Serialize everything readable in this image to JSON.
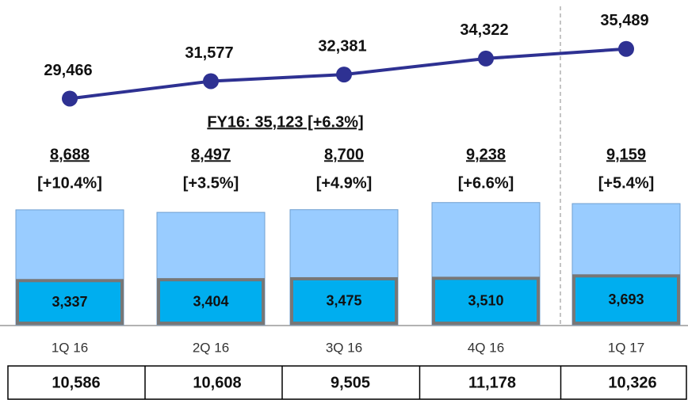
{
  "chart_data": {
    "type": "bar_line",
    "categories": [
      "1Q 16",
      "2Q 16",
      "3Q 16",
      "4Q 16",
      "1Q 17"
    ],
    "line": {
      "color": "#2e3192",
      "values": [
        29466,
        31577,
        32381,
        34322,
        35489
      ],
      "value_labels": [
        "29,466",
        "31,577",
        "32,381",
        "34,322",
        "35,489"
      ],
      "y2lim": [
        25000,
        37000
      ]
    },
    "totals": {
      "color": "#99ccff",
      "values": [
        8688,
        8497,
        8700,
        9238,
        9159
      ],
      "value_labels": [
        "8,688",
        "8,497",
        "8,700",
        "9,238",
        "9,159"
      ],
      "growth_labels": [
        "[+10.4%]",
        "[+3.5%]",
        "[+4.9%]",
        "[+6.6%]",
        "[+5.4%]"
      ]
    },
    "parts": {
      "color": "#00aeef",
      "values": [
        3337,
        3404,
        3475,
        3510,
        3693
      ],
      "value_labels": [
        "3,337",
        "3,404",
        "3,475",
        "3,510",
        "3,693"
      ]
    },
    "ylim": [
      0,
      10000
    ],
    "annotation": "FY16: 35,123 [+6.3%]",
    "table_values": [
      10586,
      10608,
      9505,
      11178,
      10326
    ],
    "table_value_labels": [
      "10,586",
      "10,608",
      "9,505",
      "11,178",
      "10,326"
    ]
  }
}
